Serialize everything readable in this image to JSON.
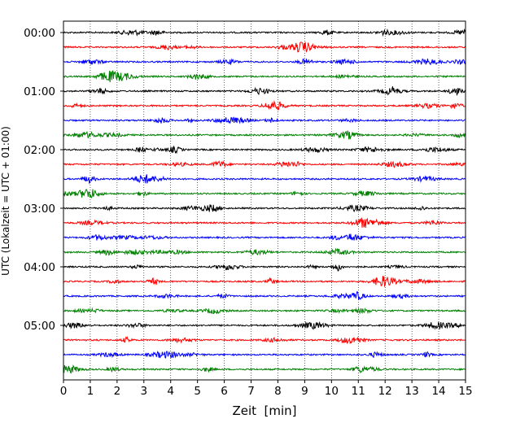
{
  "chart_data": {
    "type": "line",
    "title": "",
    "xlabel": "Zeit  [min]",
    "ylabel": "UTC (Lokalzeit = UTC + 01:00)",
    "xlim": [
      0,
      15
    ],
    "x_ticks": [
      "0",
      "1",
      "2",
      "3",
      "4",
      "5",
      "6",
      "7",
      "8",
      "9",
      "10",
      "11",
      "12",
      "13",
      "14",
      "15"
    ],
    "y_ticks": [
      "00:00",
      "01:00",
      "02:00",
      "03:00",
      "04:00",
      "05:00"
    ],
    "grid": "vertical dotted lines at each minute",
    "traces_per_hour": 4,
    "trace_interval_min": 15,
    "trace_colors": [
      "#000000",
      "#ff0000",
      "#0000ff",
      "#008000"
    ],
    "traces": [
      {
        "start": "00:00",
        "color": "#000000"
      },
      {
        "start": "00:15",
        "color": "#ff0000"
      },
      {
        "start": "00:30",
        "color": "#0000ff"
      },
      {
        "start": "00:45",
        "color": "#008000"
      },
      {
        "start": "01:00",
        "color": "#000000"
      },
      {
        "start": "01:15",
        "color": "#ff0000"
      },
      {
        "start": "01:30",
        "color": "#0000ff"
      },
      {
        "start": "01:45",
        "color": "#008000"
      },
      {
        "start": "02:00",
        "color": "#000000"
      },
      {
        "start": "02:15",
        "color": "#ff0000"
      },
      {
        "start": "02:30",
        "color": "#0000ff"
      },
      {
        "start": "02:45",
        "color": "#008000"
      },
      {
        "start": "03:00",
        "color": "#000000"
      },
      {
        "start": "03:15",
        "color": "#ff0000"
      },
      {
        "start": "03:30",
        "color": "#0000ff"
      },
      {
        "start": "03:45",
        "color": "#008000"
      },
      {
        "start": "04:00",
        "color": "#000000"
      },
      {
        "start": "04:15",
        "color": "#ff0000"
      },
      {
        "start": "04:30",
        "color": "#0000ff"
      },
      {
        "start": "04:45",
        "color": "#008000"
      },
      {
        "start": "05:00",
        "color": "#000000"
      },
      {
        "start": "05:15",
        "color": "#ff0000"
      },
      {
        "start": "05:30",
        "color": "#0000ff"
      },
      {
        "start": "05:45",
        "color": "#008000"
      }
    ]
  }
}
